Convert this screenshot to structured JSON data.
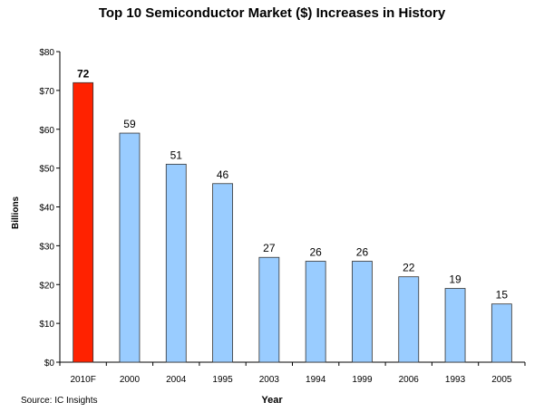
{
  "chart_data": {
    "type": "bar",
    "title": "Top 10 Semiconductor Market ($) Increases in History",
    "xlabel": "Year",
    "ylabel": "Billions",
    "ylim": [
      0,
      80
    ],
    "yticks": [
      0,
      10,
      20,
      30,
      40,
      50,
      60,
      70,
      80
    ],
    "ytick_labels": [
      "$0",
      "$10",
      "$20",
      "$30",
      "$40",
      "$50",
      "$60",
      "$70",
      "$80"
    ],
    "categories": [
      "2010F",
      "2000",
      "2004",
      "1995",
      "2003",
      "1994",
      "1999",
      "2006",
      "1993",
      "2005"
    ],
    "values": [
      72,
      59,
      51,
      46,
      27,
      26,
      26,
      22,
      19,
      15
    ],
    "data_labels": [
      "72",
      "59",
      "51",
      "46",
      "27",
      "26",
      "26",
      "22",
      "19",
      "15"
    ],
    "bar_colors": [
      "#ff2200",
      "#99ccff",
      "#99ccff",
      "#99ccff",
      "#99ccff",
      "#99ccff",
      "#99ccff",
      "#99ccff",
      "#99ccff",
      "#99ccff"
    ],
    "grid": false,
    "source": "Source: IC Insights"
  }
}
